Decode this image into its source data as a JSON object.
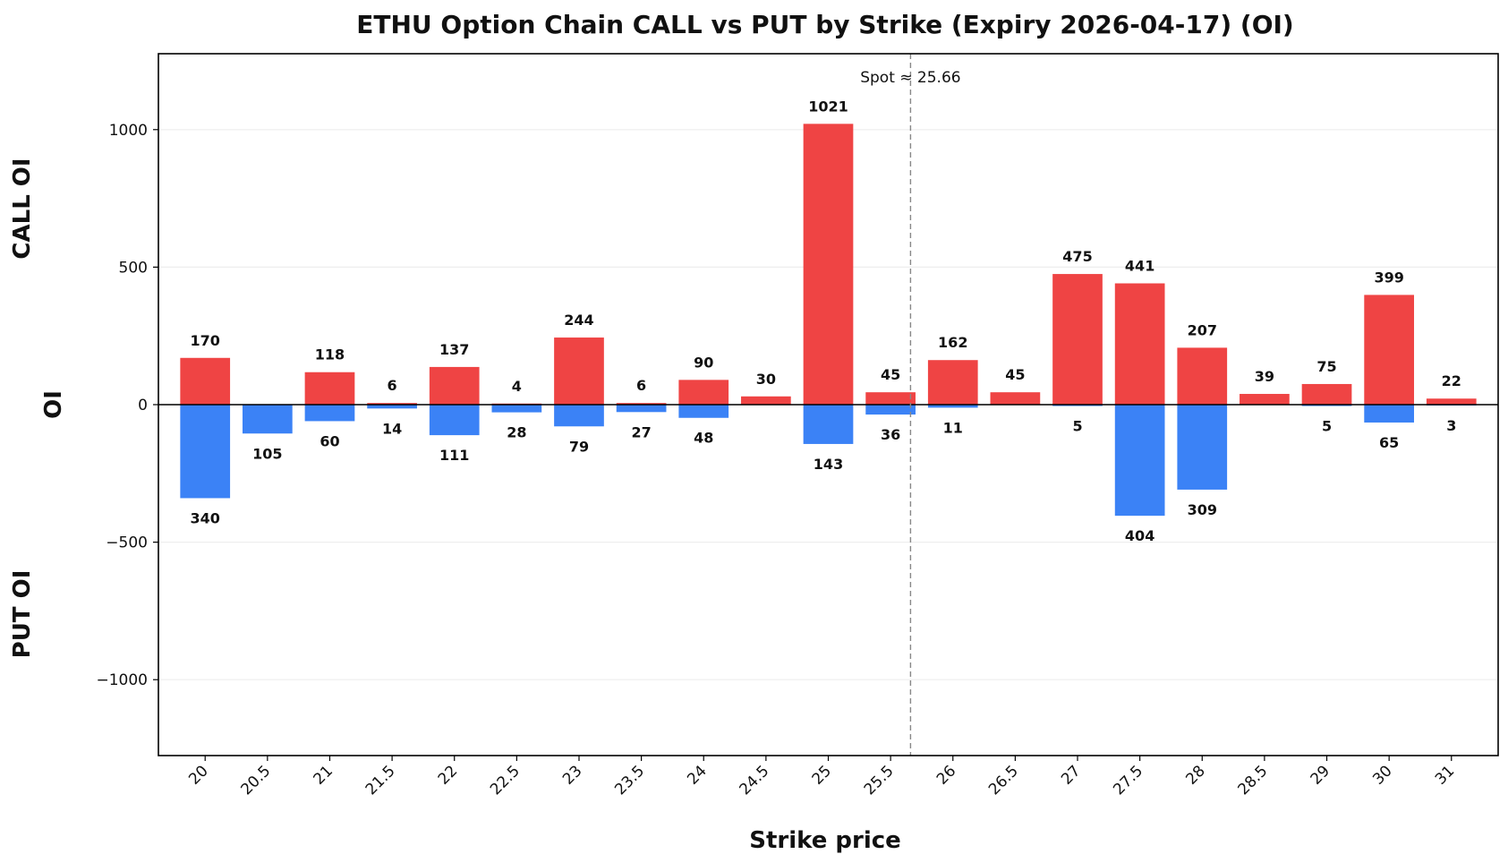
{
  "chart_data": {
    "type": "bar",
    "title": "ETHU Option Chain CALL vs PUT by Strike (Expiry 2026-04-17) (OI)",
    "xlabel": "Strike price",
    "ylabel": "OI",
    "ylabel_top": "CALL OI",
    "ylabel_bottom": "PUT OI",
    "categories": [
      "20",
      "20.5",
      "21",
      "21.5",
      "22",
      "22.5",
      "23",
      "23.5",
      "24",
      "24.5",
      "25",
      "25.5",
      "26",
      "26.5",
      "27",
      "27.5",
      "28",
      "28.5",
      "29",
      "30",
      "31"
    ],
    "series": [
      {
        "name": "CALL",
        "color": "#ef4444",
        "values": [
          170,
          0,
          118,
          6,
          137,
          4,
          244,
          6,
          90,
          30,
          1021,
          45,
          162,
          45,
          475,
          441,
          207,
          39,
          75,
          399,
          22
        ]
      },
      {
        "name": "PUT",
        "color": "#3b82f6",
        "values": [
          340,
          105,
          60,
          14,
          111,
          28,
          79,
          27,
          48,
          0,
          143,
          36,
          11,
          0,
          5,
          404,
          309,
          0,
          5,
          65,
          3
        ]
      }
    ],
    "call_labels": [
      "170",
      "",
      "118",
      "6",
      "137",
      "4",
      "244",
      "6",
      "90",
      "30",
      "1021",
      "45",
      "162",
      "45",
      "475",
      "441",
      "207",
      "39",
      "75",
      "399",
      "22"
    ],
    "put_labels": [
      "340",
      "105",
      "60",
      "14",
      "111",
      "28",
      "79",
      "27",
      "48",
      "",
      "143",
      "36",
      "11",
      "",
      "5",
      "404",
      "309",
      "",
      "5",
      "65",
      "3"
    ],
    "yticks": [
      1000,
      500,
      0,
      -500,
      -1000
    ],
    "ytick_labels": [
      "1000",
      "500",
      "0",
      "−500",
      "−1000"
    ],
    "ylim": [
      -1276,
      1276
    ],
    "spot": 25.66,
    "spot_label": "Spot ≈ 25.66",
    "grid": true
  }
}
